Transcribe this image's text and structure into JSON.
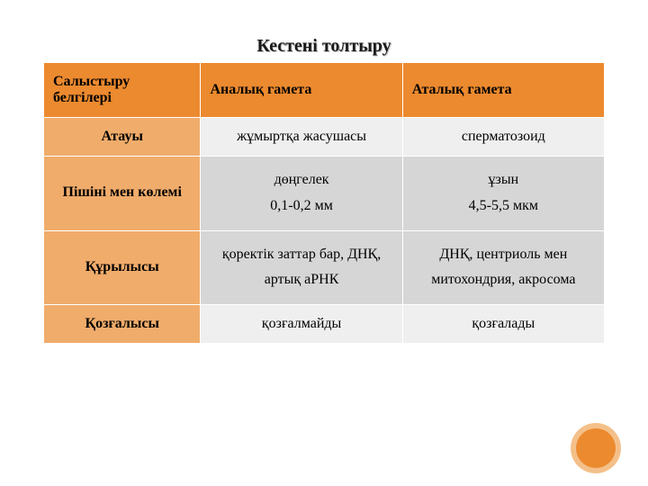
{
  "title": "Кестені толтыру",
  "colors": {
    "header_bg": "#ec8a2f",
    "row_label_bg": "#f0ac6b",
    "alt0_bg": "#efefef",
    "alt1_bg": "#d6d6d6",
    "circle_fill": "#ec8a2f",
    "circle_ring": "#f4c08a"
  },
  "table": {
    "type": "table",
    "columns": [
      "Салыстыру белгілері",
      "Аналық гамета",
      "Аталық гамета"
    ],
    "rows": [
      {
        "label": "Атауы",
        "cells": [
          "жұмыртқа жасушасы",
          "сперматозоид"
        ]
      },
      {
        "label": "Пішіні мен көлемі",
        "cells": [
          "дөңгелек\n0,1-0,2 мм",
          "ұзын\n4,5-5,5 мкм"
        ]
      },
      {
        "label": "Құрылысы",
        "cells": [
          "қоректік заттар бар, ДНҚ, артық аРНК",
          "ДНҚ, центриоль мен митохондрия, акросома"
        ]
      },
      {
        "label": "Қозғалысы",
        "cells": [
          "қозғалмайды",
          "қозғалады"
        ]
      }
    ],
    "col_widths": [
      "28%",
      "36%",
      "36%"
    ],
    "font_size_pt": 12,
    "header_font_weight": "bold"
  }
}
